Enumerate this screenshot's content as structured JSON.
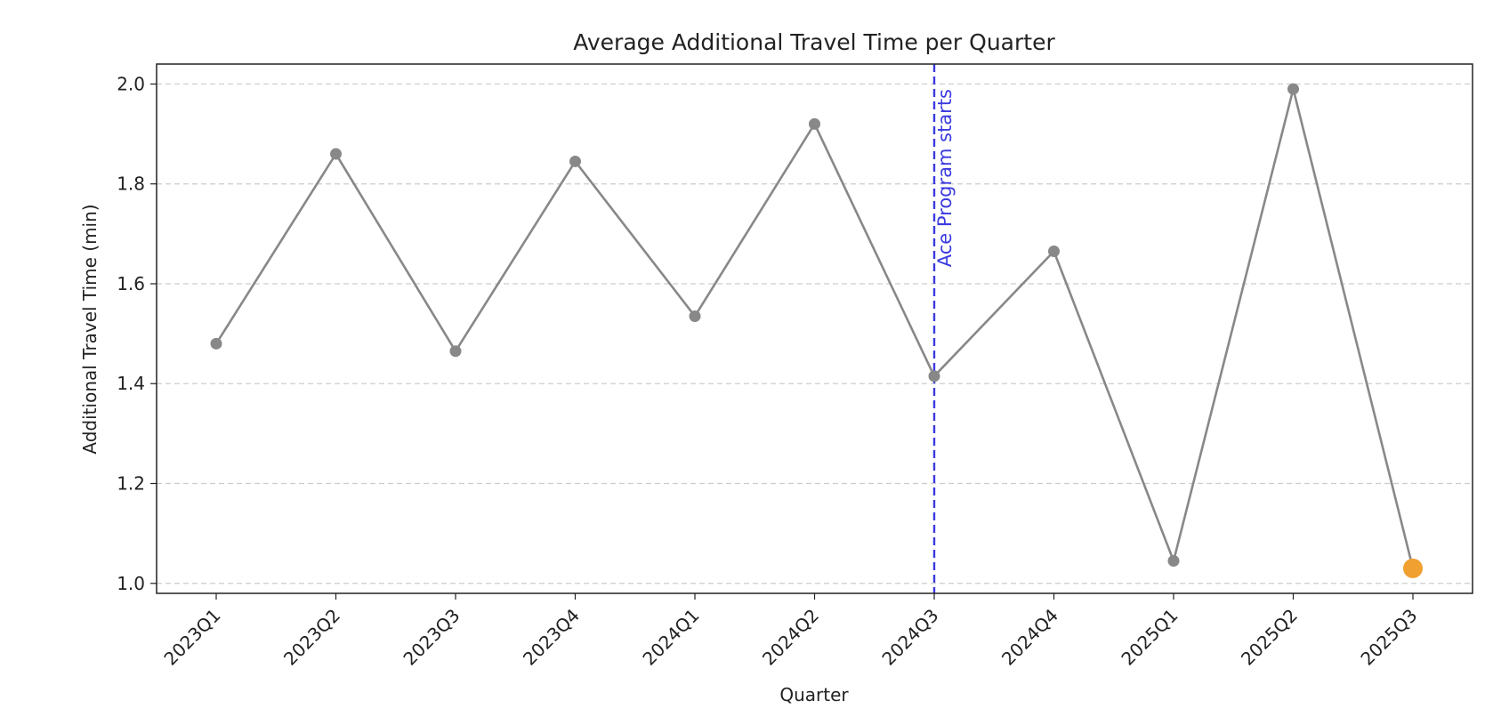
{
  "chart_data": {
    "type": "line",
    "title": "Average Additional Travel Time per Quarter",
    "xlabel": "Quarter",
    "ylabel": "Additional Travel Time (min)",
    "categories": [
      "2023Q1",
      "2023Q2",
      "2023Q3",
      "2023Q4",
      "2024Q1",
      "2024Q2",
      "2024Q3",
      "2024Q4",
      "2025Q1",
      "2025Q2",
      "2025Q3"
    ],
    "series": [
      {
        "values": [
          1.48,
          1.86,
          1.465,
          1.845,
          1.535,
          1.92,
          1.415,
          1.665,
          1.045,
          1.99,
          1.03
        ],
        "color": "#888888",
        "highlight_last_color": "#f0a030"
      }
    ],
    "ylim": [
      0.98,
      2.04
    ],
    "yticks": [
      "1.0",
      "1.2",
      "1.4",
      "1.6",
      "1.8",
      "2.0"
    ],
    "ytick_values": [
      1.0,
      1.2,
      1.4,
      1.6,
      1.8,
      2.0
    ],
    "grid": "horizontal-dashed",
    "annotation": {
      "text": "Ace Program starts",
      "at_category": "2024Q3",
      "color": "#3a3ae0"
    }
  }
}
